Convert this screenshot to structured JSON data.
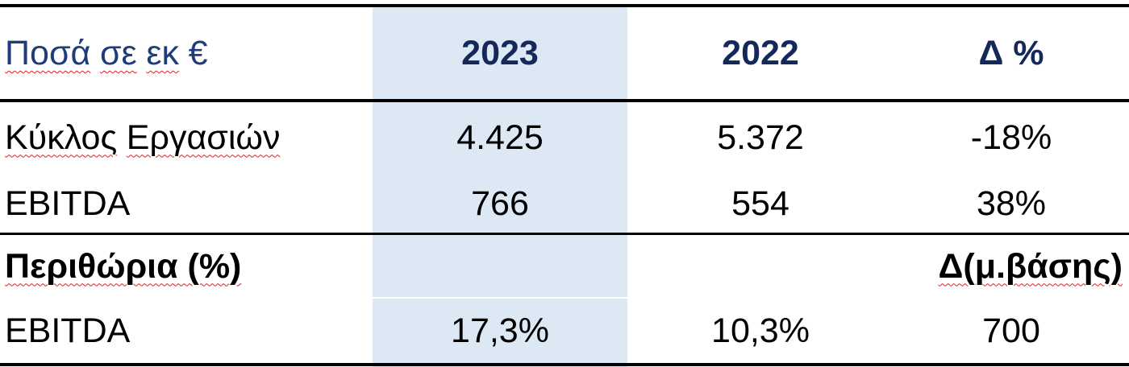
{
  "table": {
    "header": {
      "label_words": [
        "Ποσά",
        "σε",
        "εκ",
        "€"
      ],
      "col1": "2023",
      "col2": "2022",
      "col3": "Δ %"
    },
    "rows": [
      {
        "label_words": [
          "Κύκλος",
          "Εργασιών"
        ],
        "col1": "4.425",
        "col2": "5.372",
        "col3": "-18%"
      },
      {
        "label": "EBITDA",
        "col1": "766",
        "col2": "554",
        "col3": "38%"
      },
      {
        "label": "Περιθώρια (%)",
        "col1": "",
        "col2": "",
        "col3": "Δ(μ.βάσης)"
      },
      {
        "label": "EBITDA",
        "col1": "17,3%",
        "col2": "10,3%",
        "col3": "700"
      }
    ],
    "colors": {
      "header_label": "#1f3b7a",
      "header_years": "#14285a",
      "highlight_column": "#dde8f5",
      "rule": "#000000",
      "spellcheck_underline": "#dd2222"
    }
  }
}
